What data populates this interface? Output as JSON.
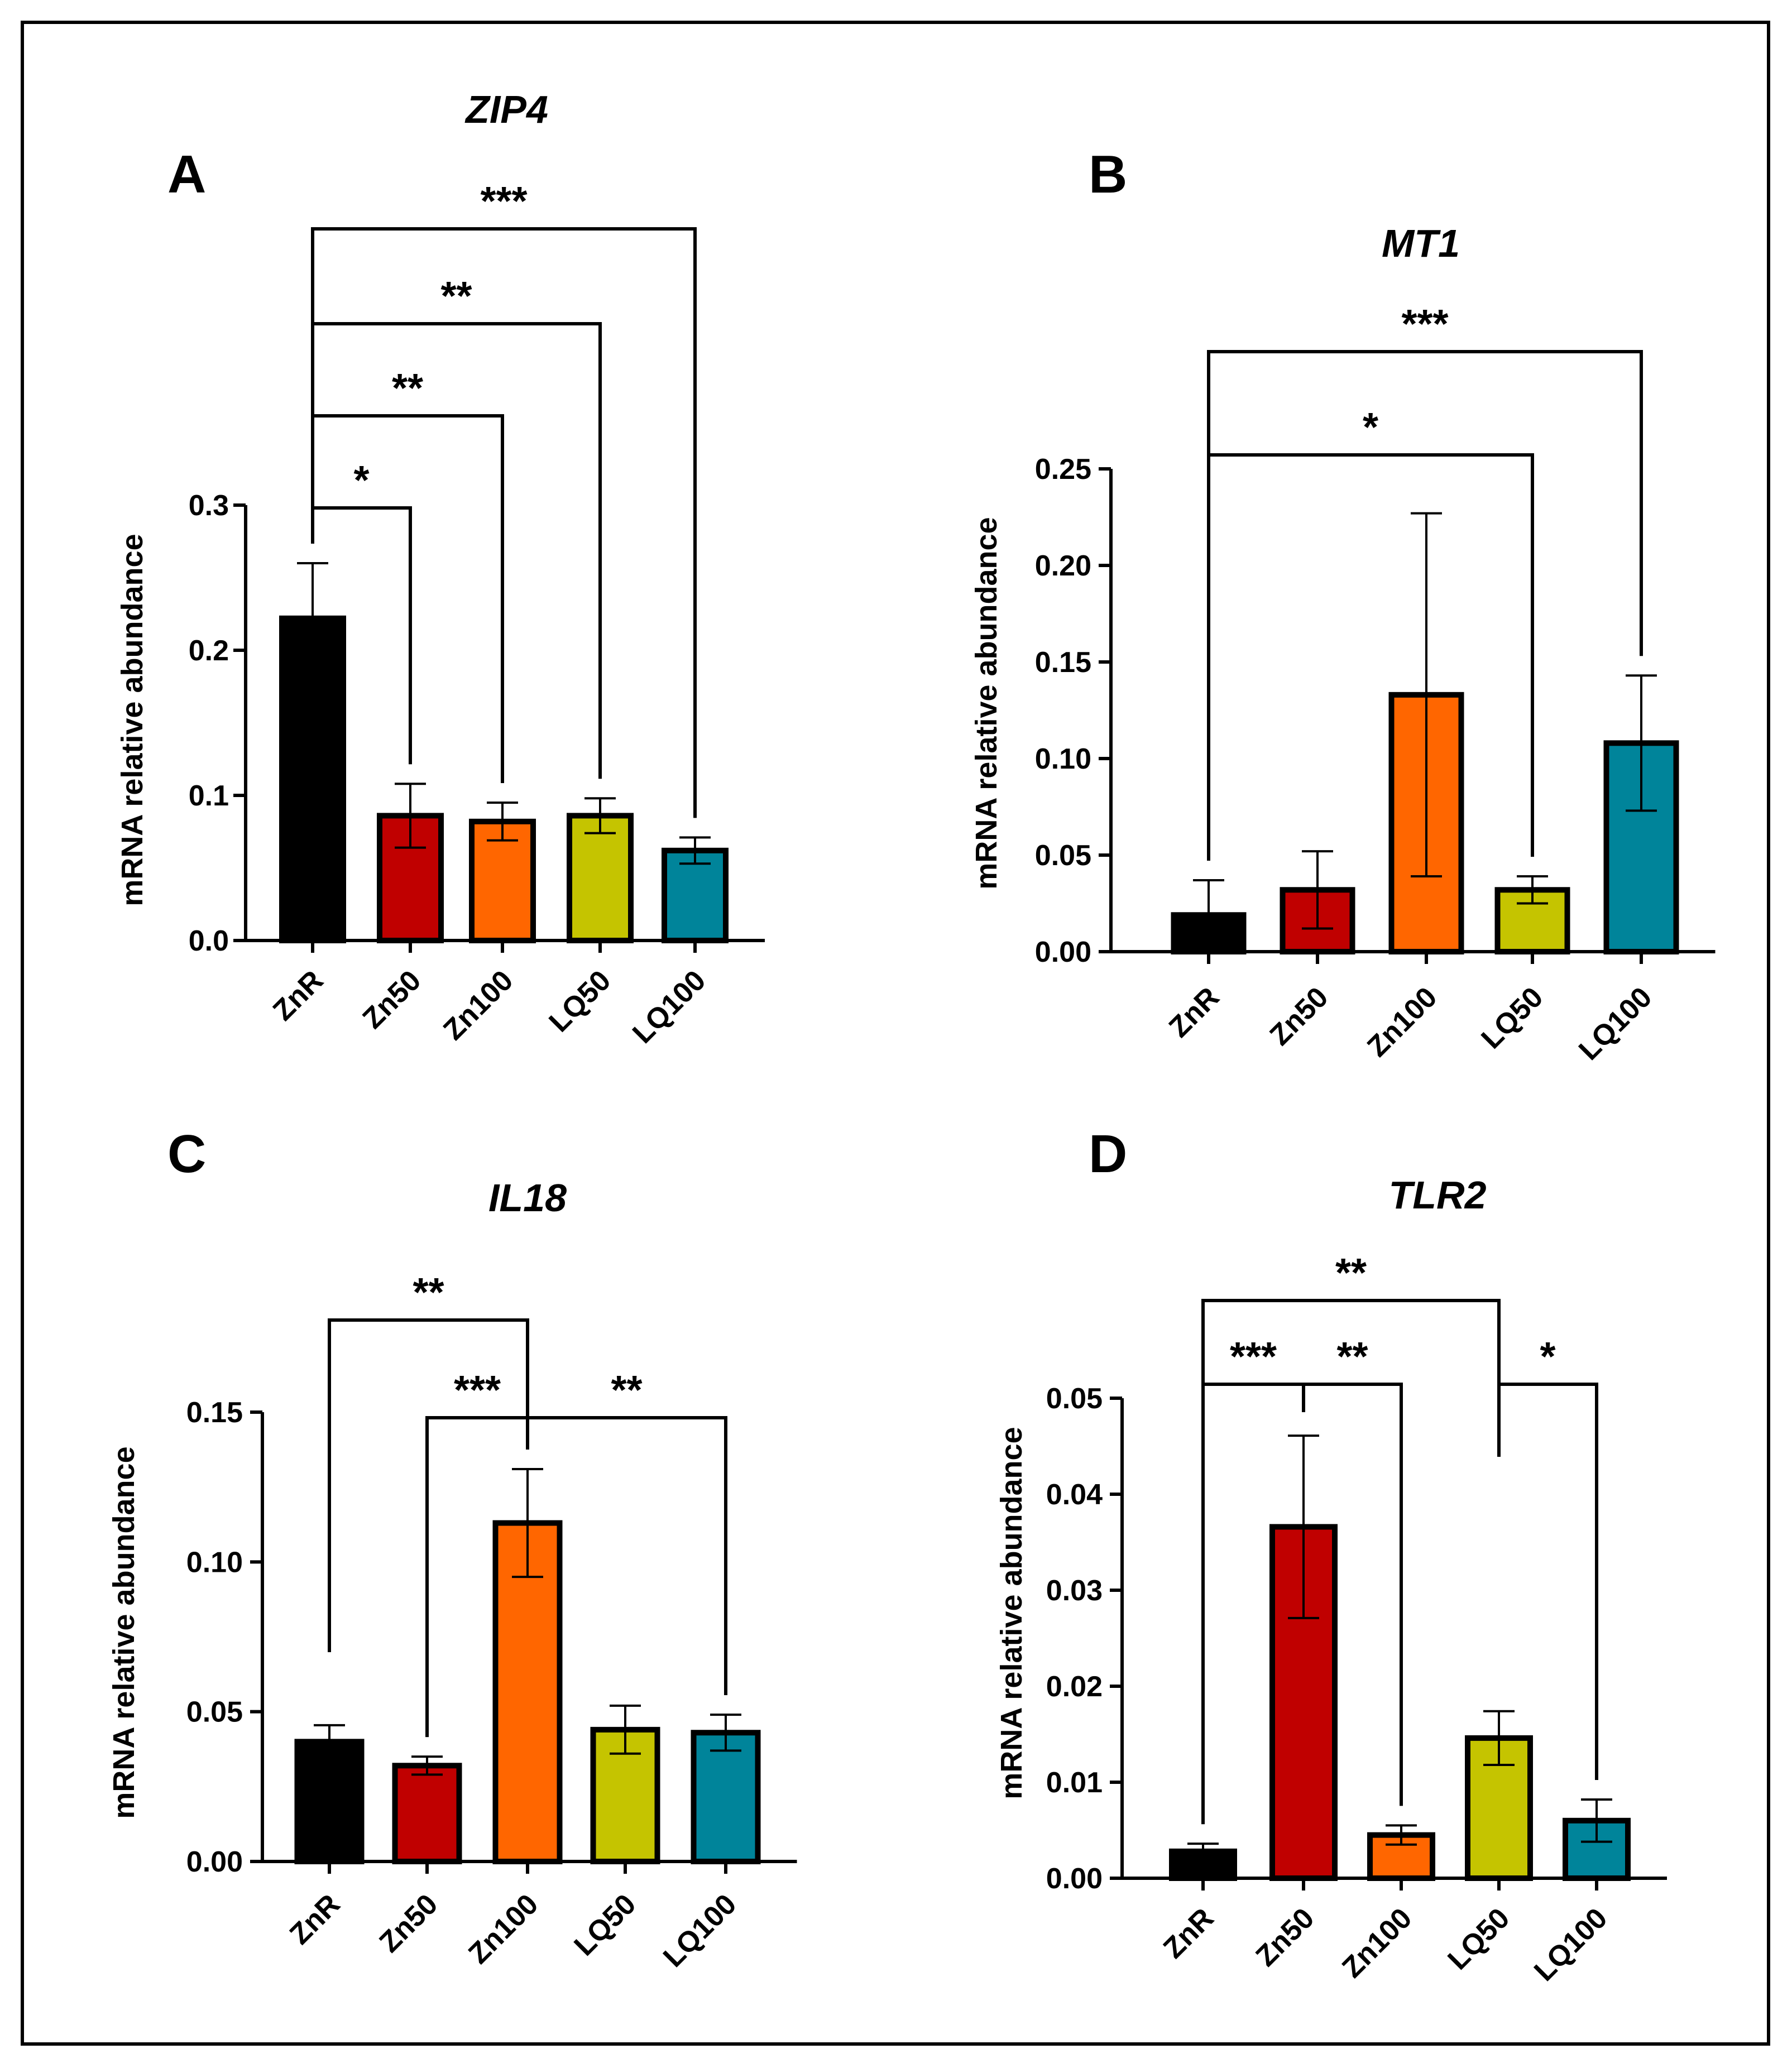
{
  "colors": {
    "ZnR": "#000000",
    "Zn50": "#c00000",
    "Zn100": "#ff6600",
    "LQ50": "#c5c400",
    "LQ100": "#00849a",
    "axis": "#000000"
  },
  "chart_data": [
    {
      "panel": "A",
      "type": "bar",
      "title": "ZIP4",
      "ylabel": "mRNA relative abundance",
      "xlabel": "",
      "categories": [
        "ZnR",
        "Zn50",
        "Zn100",
        "LQ50",
        "LQ100"
      ],
      "values": [
        0.222,
        0.086,
        0.082,
        0.086,
        0.062
      ],
      "errors": [
        0.038,
        0.022,
        0.013,
        0.012,
        0.009
      ],
      "ylim": [
        0,
        0.3
      ],
      "yticks": [
        "0.0",
        "0.1",
        "0.2",
        "0.3"
      ],
      "ytick_values": [
        0,
        0.1,
        0.2,
        0.3
      ],
      "grid": false,
      "significance": [
        {
          "from": 0,
          "to": 1,
          "label": "*"
        },
        {
          "from": 0,
          "to": 2,
          "label": "**"
        },
        {
          "from": 0,
          "to": 3,
          "label": "**"
        },
        {
          "from": 0,
          "to": 4,
          "label": "***"
        }
      ]
    },
    {
      "panel": "B",
      "type": "bar",
      "title": "MT1",
      "ylabel": "mRNA relative abundance",
      "xlabel": "",
      "categories": [
        "ZnR",
        "Zn50",
        "Zn100",
        "LQ50",
        "LQ100"
      ],
      "values": [
        0.019,
        0.032,
        0.133,
        0.032,
        0.108
      ],
      "errors": [
        0.018,
        0.02,
        0.094,
        0.007,
        0.035
      ],
      "ylim": [
        0,
        0.25
      ],
      "yticks": [
        "0.00",
        "0.05",
        "0.10",
        "0.15",
        "0.20",
        "0.25"
      ],
      "ytick_values": [
        0,
        0.05,
        0.1,
        0.15,
        0.2,
        0.25
      ],
      "grid": false,
      "significance": [
        {
          "from": 0,
          "to": 3,
          "label": "*"
        },
        {
          "from": 0,
          "to": 4,
          "label": "***"
        }
      ]
    },
    {
      "panel": "C",
      "type": "bar",
      "title": "IL18",
      "ylabel": "mRNA relative abundance",
      "xlabel": "",
      "categories": [
        "ZnR",
        "Zn50",
        "Zn100",
        "LQ50",
        "LQ100"
      ],
      "values": [
        0.04,
        0.032,
        0.113,
        0.044,
        0.043
      ],
      "errors": [
        0.0055,
        0.003,
        0.018,
        0.008,
        0.006
      ],
      "ylim": [
        0,
        0.15
      ],
      "yticks": [
        "0.00",
        "0.05",
        "0.10",
        "0.15"
      ],
      "ytick_values": [
        0,
        0.05,
        0.1,
        0.15
      ],
      "grid": false,
      "significance": [
        {
          "from": 0,
          "to": 2,
          "label": "**"
        },
        {
          "from": 1,
          "to": 2,
          "label": "***"
        },
        {
          "from": 2,
          "to": 4,
          "label": "**"
        }
      ]
    },
    {
      "panel": "D",
      "type": "bar",
      "title": "TLR2",
      "ylabel": "mRNA relative abundance",
      "xlabel": "",
      "categories": [
        "ZnR",
        "Zn50",
        "Zn100",
        "LQ50",
        "LQ100"
      ],
      "values": [
        0.0028,
        0.0366,
        0.0045,
        0.0146,
        0.006
      ],
      "errors": [
        0.0008,
        0.0095,
        0.001,
        0.0028,
        0.0022
      ],
      "ylim": [
        0,
        0.05
      ],
      "yticks": [
        "0.00",
        "0.01",
        "0.02",
        "0.03",
        "0.04",
        "0.05"
      ],
      "ytick_values": [
        0,
        0.01,
        0.02,
        0.03,
        0.04,
        0.05
      ],
      "grid": false,
      "significance": [
        {
          "from": 0,
          "to": 1,
          "label": "***"
        },
        {
          "from": 1,
          "to": 2,
          "label": "**"
        },
        {
          "from": 0,
          "to": 3,
          "label": "**"
        },
        {
          "from": 3,
          "to": 4,
          "label": "*"
        }
      ]
    }
  ]
}
